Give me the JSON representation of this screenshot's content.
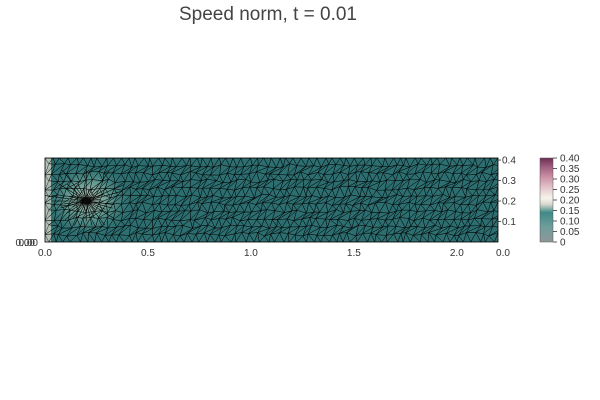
{
  "chart_data": {
    "type": "heatmap",
    "title": "Speed norm, t = 0.01",
    "xlim": [
      0.0,
      2.2
    ],
    "ylim": [
      0.0,
      0.41
    ],
    "x_ticks": [
      "0.0",
      "0.5",
      "1.0",
      "1.5",
      "2.0"
    ],
    "x_right_label": "0.0",
    "y_ticks_right": [
      "0.1",
      "0.2",
      "0.3",
      "0.4"
    ],
    "y_left_overlap_label": "0.00",
    "colorbar": {
      "range": [
        0.0,
        0.4
      ],
      "ticks": [
        "0",
        "0.05",
        "0.10",
        "0.15",
        "0.20",
        "0.25",
        "0.30",
        "0.35",
        "0.40"
      ],
      "colors": [
        "#8f969a",
        "#6f9e9b",
        "#2f7476",
        "#d9d9cf",
        "#f7f4ec",
        "#e8cfd3",
        "#c98ea3",
        "#9d5b7c",
        "#6a2e52"
      ]
    },
    "field": {
      "obstacle_center": [
        0.2,
        0.2
      ],
      "mesh_type": "triangular",
      "mesh_color": "#000000",
      "base_color": "#2d6f71"
    }
  }
}
